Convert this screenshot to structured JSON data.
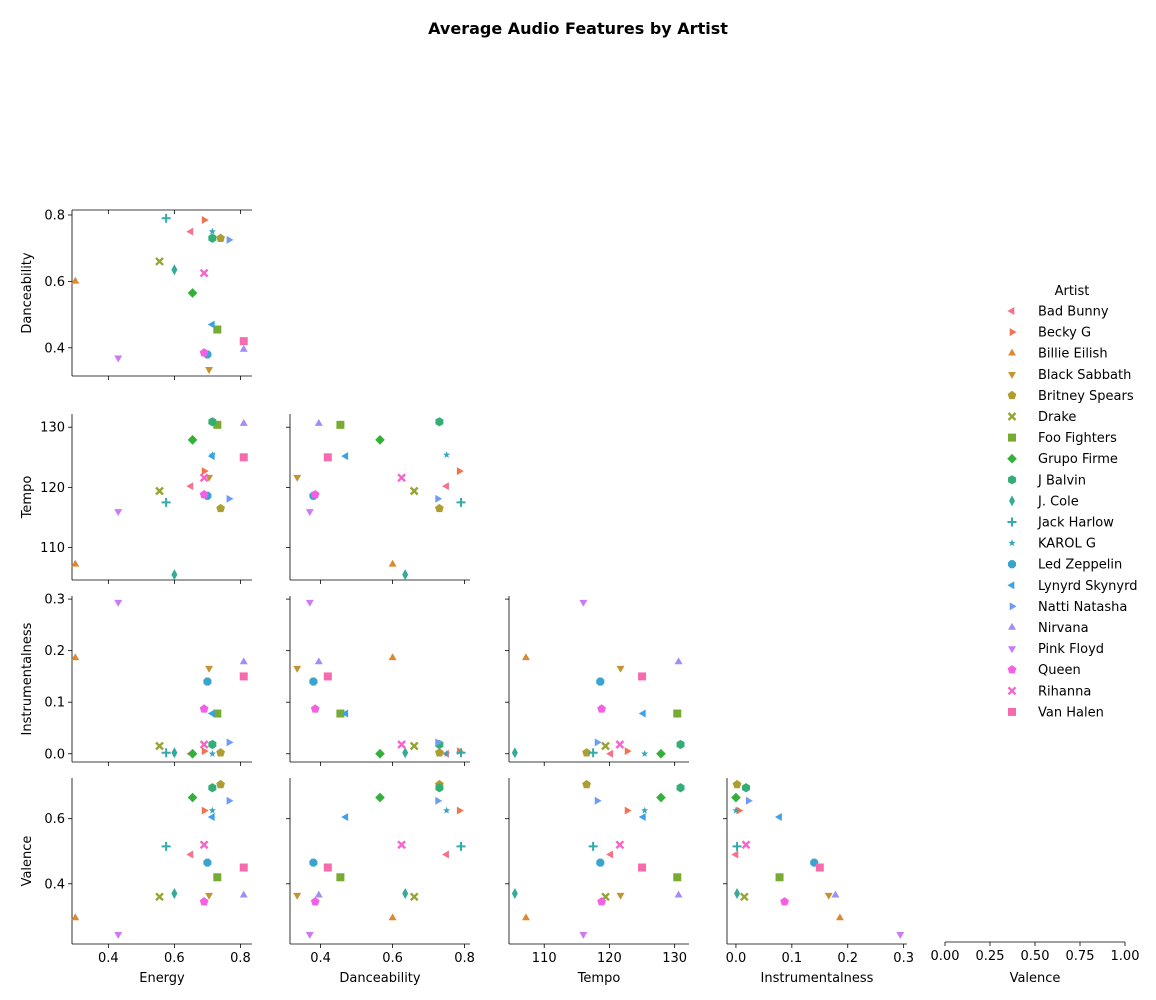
{
  "chart_data": {
    "type": "scatter",
    "subtype": "pairplot-lower-triangle",
    "title": "Average Audio Features by Artist",
    "variables": [
      "Energy",
      "Danceability",
      "Tempo",
      "Instrumentalness",
      "Valence"
    ],
    "axis_ranges": {
      "Energy": [
        0.29,
        0.835
      ],
      "Danceability": [
        0.315,
        0.815
      ],
      "Tempo": [
        104.6,
        132.2
      ],
      "Instrumentalness": [
        -0.016,
        0.306
      ],
      "Valence": [
        0.215,
        0.725
      ]
    },
    "ticks": {
      "Energy": [
        0.4,
        0.6,
        0.8
      ],
      "Danceability": [
        0.4,
        0.6,
        0.8
      ],
      "Tempo": [
        110,
        120,
        130
      ],
      "Instrumentalness": [
        0.0,
        0.1,
        0.2,
        0.3
      ],
      "Valence": [
        0.4,
        0.6
      ]
    },
    "tick_labels": {
      "Energy": [
        "0.4",
        "0.6",
        "0.8"
      ],
      "Danceability": [
        "0.4",
        "0.6",
        "0.8"
      ],
      "Tempo": [
        "110",
        "120",
        "130"
      ],
      "Instrumentalness": [
        "0.0",
        "0.1",
        "0.2",
        "0.3"
      ],
      "Valence": [
        "0.4",
        "0.6"
      ]
    },
    "empty_diagonal_axis": {
      "variable": "Valence",
      "range": [
        0,
        1
      ],
      "ticks": [
        0,
        0.25,
        0.5,
        0.75,
        1
      ],
      "tick_labels": [
        "0.00",
        "0.25",
        "0.50",
        "0.75",
        "1.00"
      ]
    },
    "grid": false,
    "legend": {
      "title": "Artist",
      "position": "right"
    },
    "series": [
      {
        "name": "Bad Bunny",
        "color": "#f77189",
        "marker": "triangle-left",
        "Energy": 0.65,
        "Danceability": 0.75,
        "Tempo": 120.2,
        "Instrumentalness": 0.0,
        "Valence": 0.49
      },
      {
        "name": "Becky G",
        "color": "#f2734f",
        "marker": "triangle-right",
        "Energy": 0.69,
        "Danceability": 0.785,
        "Tempo": 122.7,
        "Instrumentalness": 0.005,
        "Valence": 0.625
      },
      {
        "name": "Billie Eilish",
        "color": "#dc8932",
        "marker": "triangle-up",
        "Energy": 0.3,
        "Danceability": 0.6,
        "Tempo": 107.2,
        "Instrumentalness": 0.186,
        "Valence": 0.295
      },
      {
        "name": "Black Sabbath",
        "color": "#c39532",
        "marker": "triangle-down",
        "Energy": 0.705,
        "Danceability": 0.335,
        "Tempo": 121.7,
        "Instrumentalness": 0.166,
        "Valence": 0.365
      },
      {
        "name": "Britney Spears",
        "color": "#ae9d31",
        "marker": "pentagon",
        "Energy": 0.74,
        "Danceability": 0.73,
        "Tempo": 116.5,
        "Instrumentalness": 0.002,
        "Valence": 0.705
      },
      {
        "name": "Drake",
        "color": "#97a431",
        "marker": "x",
        "Energy": 0.555,
        "Danceability": 0.66,
        "Tempo": 119.4,
        "Instrumentalness": 0.015,
        "Valence": 0.36
      },
      {
        "name": "Foo Fighters",
        "color": "#77ab31",
        "marker": "square",
        "Energy": 0.73,
        "Danceability": 0.455,
        "Tempo": 130.4,
        "Instrumentalness": 0.078,
        "Valence": 0.42
      },
      {
        "name": "Grupo Firme",
        "color": "#33b039",
        "marker": "diamond",
        "Energy": 0.655,
        "Danceability": 0.565,
        "Tempo": 127.9,
        "Instrumentalness": 0.0,
        "Valence": 0.665
      },
      {
        "name": "J Balvin",
        "color": "#34ae77",
        "marker": "hexagon",
        "Energy": 0.715,
        "Danceability": 0.73,
        "Tempo": 130.9,
        "Instrumentalness": 0.018,
        "Valence": 0.695
      },
      {
        "name": "J. Cole",
        "color": "#35ab97",
        "marker": "thin-diamond",
        "Energy": 0.6,
        "Danceability": 0.635,
        "Tempo": 105.5,
        "Instrumentalness": 0.002,
        "Valence": 0.37
      },
      {
        "name": "Jack Harlow",
        "color": "#36a9ab",
        "marker": "plus",
        "Energy": 0.575,
        "Danceability": 0.79,
        "Tempo": 117.5,
        "Instrumentalness": 0.002,
        "Valence": 0.515
      },
      {
        "name": "KAROL G",
        "color": "#37a7bd",
        "marker": "star",
        "Energy": 0.715,
        "Danceability": 0.75,
        "Tempo": 125.4,
        "Instrumentalness": 0.0,
        "Valence": 0.625
      },
      {
        "name": "Led Zeppelin",
        "color": "#39a4d0",
        "marker": "octagon",
        "Energy": 0.7,
        "Danceability": 0.38,
        "Tempo": 118.6,
        "Instrumentalness": 0.14,
        "Valence": 0.465
      },
      {
        "name": "Lynyrd Skynyrd",
        "color": "#3ba1ea",
        "marker": "triangle-left",
        "Energy": 0.715,
        "Danceability": 0.47,
        "Tempo": 125.2,
        "Instrumentalness": 0.078,
        "Valence": 0.605
      },
      {
        "name": "Natti Natasha",
        "color": "#6e9bf4",
        "marker": "triangle-right",
        "Energy": 0.765,
        "Danceability": 0.725,
        "Tempo": 118.1,
        "Instrumentalness": 0.022,
        "Valence": 0.655
      },
      {
        "name": "Nirvana",
        "color": "#a48cf4",
        "marker": "triangle-up",
        "Energy": 0.81,
        "Danceability": 0.395,
        "Tempo": 130.6,
        "Instrumentalness": 0.178,
        "Valence": 0.365
      },
      {
        "name": "Pink Floyd",
        "color": "#cc7af4",
        "marker": "triangle-down",
        "Energy": 0.43,
        "Danceability": 0.37,
        "Tempo": 116.0,
        "Instrumentalness": 0.294,
        "Valence": 0.245
      },
      {
        "name": "Queen",
        "color": "#f45fe3",
        "marker": "pentagon",
        "Energy": 0.69,
        "Danceability": 0.385,
        "Tempo": 118.8,
        "Instrumentalness": 0.087,
        "Valence": 0.345
      },
      {
        "name": "Rihanna",
        "color": "#f565cc",
        "marker": "x",
        "Energy": 0.69,
        "Danceability": 0.625,
        "Tempo": 121.6,
        "Instrumentalness": 0.018,
        "Valence": 0.52
      },
      {
        "name": "Van Halen",
        "color": "#f66bad",
        "marker": "square",
        "Energy": 0.81,
        "Danceability": 0.42,
        "Tempo": 125.0,
        "Instrumentalness": 0.15,
        "Valence": 0.45
      }
    ]
  }
}
